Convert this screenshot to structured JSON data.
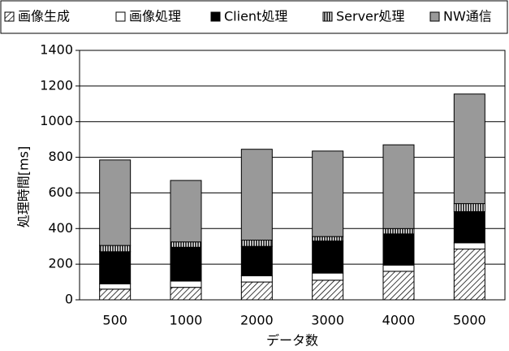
{
  "chart_data": {
    "type": "stacked_bar",
    "x_label": "データ数",
    "y_label": "処理時間[ms]",
    "categories": [
      "500",
      "1000",
      "2000",
      "3000",
      "4000",
      "5000"
    ],
    "series": [
      {
        "name": "画像生成",
        "color": "#000000",
        "pattern": "diagonal",
        "values": [
          60,
          70,
          100,
          110,
          160,
          285
        ]
      },
      {
        "name": "画像処理",
        "color": "#ffffff",
        "values": [
          30,
          35,
          35,
          40,
          35,
          35
        ]
      },
      {
        "name": "Client処理",
        "color": "#000000",
        "values": [
          180,
          190,
          165,
          180,
          175,
          175
        ]
      },
      {
        "name": "Server処理",
        "color": "#000000",
        "pattern": "vertical",
        "values": [
          35,
          30,
          35,
          25,
          30,
          45
        ]
      },
      {
        "name": "NW通信",
        "color": "#999999",
        "values": [
          480,
          345,
          510,
          480,
          470,
          615
        ]
      }
    ],
    "ylim": [
      0,
      1400
    ],
    "yticks": [
      0,
      200,
      400,
      600,
      800,
      1000,
      1200,
      1400
    ],
    "grid": true
  }
}
